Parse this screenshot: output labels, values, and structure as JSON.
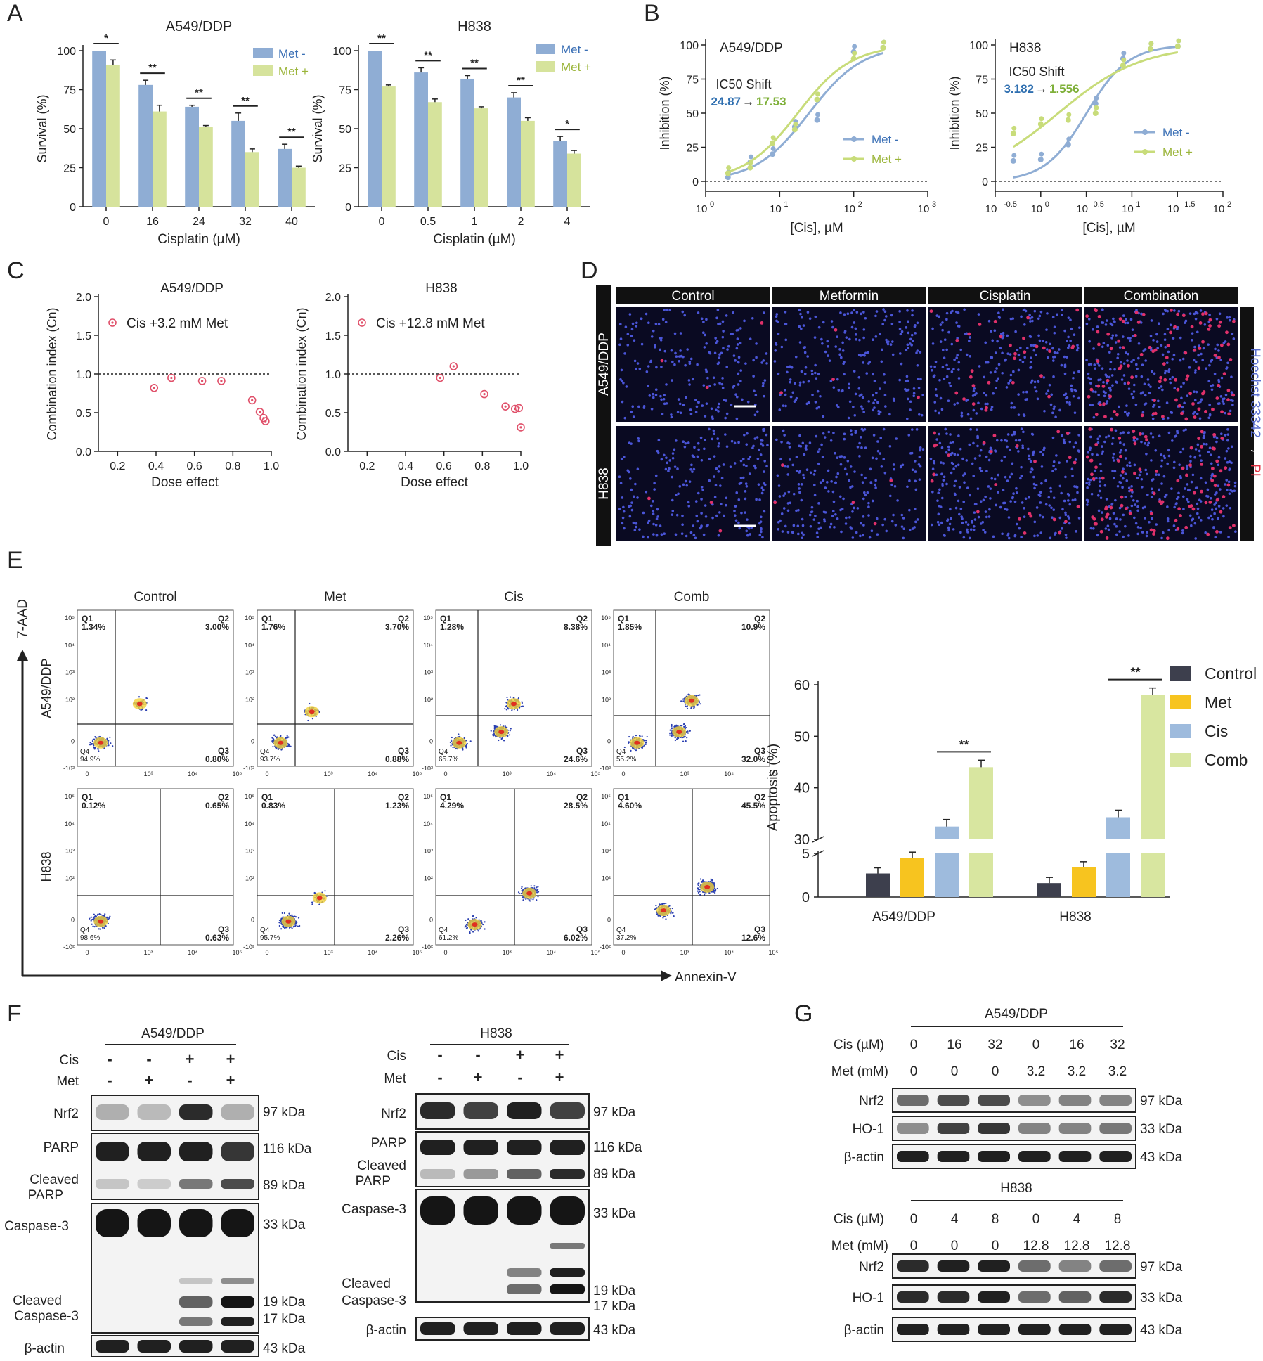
{
  "panels": {
    "A": "A",
    "B": "B",
    "C": "C",
    "D": "D",
    "E": "E",
    "F": "F",
    "G": "G"
  },
  "common": {
    "survival_ylabel": "Survival (%)",
    "cisplatin_xlabel": "Cisplatin (µM)",
    "inhibition_ylabel": "Inhibition (%)",
    "cis_xlabel": "[Cis], µM",
    "ci_ylabel": "Combination index (Cn)",
    "dose_effect_xlabel": "Dose effect",
    "met_minus": "Met -",
    "met_plus": "Met +",
    "ic50_shift": "IC50 Shift",
    "arrow": "→",
    "star2": "**",
    "star1": "*",
    "x_axis_flow": "Annexin-V",
    "y_axis_flow": "7-AAD",
    "apoptosis_ylabel": "Apoptosis (%)"
  },
  "colors": {
    "met_minus": "#8fadd4",
    "met_plus": "#d6e39c",
    "control": "#3d3f4d",
    "met": "#f7c41f",
    "cis": "#9ebbdd",
    "comb": "#d8e6a0",
    "ic50_blue": "#2f6fb0",
    "ic50_green": "#7fb03a",
    "ci_red": "#e0506a"
  },
  "chart_data": [
    {
      "id": "A1",
      "type": "bar",
      "title": "A549/DDP",
      "xlabel": "Cisplatin (µM)",
      "ylabel": "Survival (%)",
      "ylim": [
        0,
        100
      ],
      "categories": [
        "0",
        "16",
        "24",
        "32",
        "40"
      ],
      "series": [
        {
          "name": "Met -",
          "values": [
            100,
            78,
            64,
            55,
            37
          ],
          "err": [
            0,
            3,
            1,
            5,
            3
          ]
        },
        {
          "name": "Met +",
          "values": [
            91,
            61,
            51,
            35,
            25
          ],
          "err": [
            3,
            4,
            1,
            2,
            1
          ]
        }
      ],
      "signif": [
        "*",
        "**",
        "**",
        "**",
        "**"
      ]
    },
    {
      "id": "A2",
      "type": "bar",
      "title": "H838",
      "xlabel": "Cisplatin (µM)",
      "ylabel": "Survival (%)",
      "ylim": [
        0,
        100
      ],
      "categories": [
        "0",
        "0.5",
        "1",
        "2",
        "4"
      ],
      "series": [
        {
          "name": "Met -",
          "values": [
            100,
            86,
            82,
            70,
            42
          ],
          "err": [
            0,
            3,
            2,
            3,
            3
          ]
        },
        {
          "name": "Met +",
          "values": [
            77,
            67,
            63,
            55,
            34
          ],
          "err": [
            1,
            2,
            1,
            2,
            2
          ]
        }
      ],
      "signif": [
        "**",
        "**",
        "**",
        "**",
        "*"
      ]
    },
    {
      "id": "B1",
      "type": "line",
      "title": "A549/DDP",
      "xlabel": "[Cis], µM",
      "ylabel": "Inhibition (%)",
      "xscale": "log",
      "xlim": [
        1,
        1000
      ],
      "ylim": [
        0,
        100
      ],
      "ic50_from": "24.87",
      "ic50_to": "17.53",
      "series": [
        {
          "name": "Met -",
          "x": [
            2,
            4,
            8,
            16,
            32,
            100,
            250
          ],
          "y": [
            3,
            14,
            20,
            40,
            45,
            95,
            98
          ]
        },
        {
          "name": "Met +",
          "x": [
            2,
            4,
            8,
            16,
            32,
            100,
            250
          ],
          "y": [
            6,
            10,
            28,
            38,
            60,
            90,
            98
          ]
        }
      ]
    },
    {
      "id": "B2",
      "type": "line",
      "title": "H838",
      "xlabel": "[Cis], µM",
      "ylabel": "Inhibition (%)",
      "xscale": "log",
      "xlim": [
        0.316,
        100
      ],
      "ylim": [
        0,
        100
      ],
      "ic50_from": "3.182",
      "ic50_to": "1.556",
      "series": [
        {
          "name": "Met -",
          "x": [
            0.5,
            1,
            2,
            4,
            8,
            16,
            32
          ],
          "y": [
            15,
            16,
            27,
            57,
            90,
            97,
            99
          ]
        },
        {
          "name": "Met +",
          "x": [
            0.5,
            1,
            2,
            4,
            8,
            16,
            32
          ],
          "y": [
            35,
            42,
            45,
            50,
            85,
            97,
            99
          ]
        }
      ]
    },
    {
      "id": "C1",
      "type": "scatter",
      "title": "A549/DDP",
      "xlabel": "Dose effect",
      "ylabel": "Combination index (Cn)",
      "xlim": [
        0.1,
        1.0
      ],
      "ylim": [
        0,
        2.0
      ],
      "legend": "Cis +3.2 mM Met",
      "x": [
        0.39,
        0.48,
        0.64,
        0.74,
        0.9,
        0.94,
        0.96,
        0.97
      ],
      "y": [
        0.82,
        0.95,
        0.91,
        0.91,
        0.66,
        0.51,
        0.43,
        0.39
      ]
    },
    {
      "id": "C2",
      "type": "scatter",
      "title": "H838",
      "xlabel": "Dose effect",
      "ylabel": "Combination index (Cn)",
      "xlim": [
        0.1,
        1.0
      ],
      "ylim": [
        0,
        2.0
      ],
      "legend": "Cis +12.8 mM Met",
      "x": [
        0.58,
        0.65,
        0.81,
        0.92,
        0.97,
        0.99,
        1.0
      ],
      "y": [
        0.95,
        1.1,
        0.74,
        0.58,
        0.55,
        0.56,
        0.31
      ]
    },
    {
      "id": "E_bar",
      "type": "bar",
      "xlabel": "",
      "ylabel": "Apoptosis (%)",
      "ylim": [
        0,
        60
      ],
      "axis_break": [
        5,
        30
      ],
      "categories": [
        "A549/DDP",
        "H838"
      ],
      "series": [
        {
          "name": "Control",
          "values": [
            2.7,
            1.6
          ]
        },
        {
          "name": "Met",
          "values": [
            4.5,
            3.4
          ]
        },
        {
          "name": "Cis",
          "values": [
            32.5,
            34.3
          ]
        },
        {
          "name": "Comb",
          "values": [
            44,
            58
          ]
        }
      ],
      "signif": [
        "**",
        "**"
      ]
    }
  ],
  "B_ticks": {
    "b1_x": [
      {
        "base": "10",
        "exp": "0"
      },
      {
        "base": "10",
        "exp": "1"
      },
      {
        "base": "10",
        "exp": "2"
      },
      {
        "base": "10",
        "exp": "3"
      }
    ],
    "b2_x": [
      {
        "base": "10",
        "exp": "-0.5"
      },
      {
        "base": "10",
        "exp": "0"
      },
      {
        "base": "10",
        "exp": "0.5"
      },
      {
        "base": "10",
        "exp": "1"
      },
      {
        "base": "10",
        "exp": "1.5"
      },
      {
        "base": "10",
        "exp": "2"
      }
    ],
    "y": [
      "0",
      "25",
      "50",
      "75",
      "100"
    ]
  },
  "D": {
    "cols": [
      "Control",
      "Metformin",
      "Cisplatin",
      "Combination"
    ],
    "rows": [
      "A549/DDP",
      "H838"
    ],
    "side_label_1": "Hoechst 33342",
    "side_label_sep": " / ",
    "side_label_2": "PI"
  },
  "E_flow": {
    "cols": [
      "Control",
      "Met",
      "Cis",
      "Comb"
    ],
    "rows": [
      "A549/DDP",
      "H838"
    ],
    "quads": [
      [
        {
          "q1": "1.34%",
          "q2": "3.00%",
          "q3": "0.80%",
          "q4": "94.9%"
        },
        {
          "q1": "1.76%",
          "q2": "3.70%",
          "q3": "0.88%",
          "q4": "93.7%"
        },
        {
          "q1": "1.28%",
          "q2": "8.38%",
          "q3": "24.6%",
          "q4": "65.7%"
        },
        {
          "q1": "1.85%",
          "q2": "10.9%",
          "q3": "32.0%",
          "q4": "55.2%"
        }
      ],
      [
        {
          "q1": "0.12%",
          "q2": "0.65%",
          "q3": "0.63%",
          "q4": "98.6%"
        },
        {
          "q1": "0.83%",
          "q2": "1.23%",
          "q3": "2.26%",
          "q4": "95.7%"
        },
        {
          "q1": "4.29%",
          "q2": "28.5%",
          "q3": "6.02%",
          "q4": "61.2%"
        },
        {
          "q1": "4.60%",
          "q2": "45.5%",
          "q3": "12.6%",
          "q4": "37.2%"
        }
      ]
    ],
    "qlabels": [
      "Q1",
      "Q2",
      "Q3",
      "Q4"
    ],
    "yticks": [
      "10⁵",
      "10⁴",
      "10³",
      "10²",
      "0",
      "-10²"
    ],
    "xticks": [
      "0",
      "10³",
      "10⁴",
      "10⁵"
    ]
  },
  "F": {
    "title_a": "A549/DDP",
    "title_h": "H838",
    "cis_label": "Cis",
    "met_label": "Met",
    "cis_signs": [
      "-",
      "-",
      "+",
      "+"
    ],
    "met_signs": [
      "-",
      "+",
      "-",
      "+"
    ],
    "left_labels": [
      "Nrf2",
      "PARP",
      "Cleaved PARP",
      "Caspase-3",
      "Cleaved Caspase-3",
      "β-actin"
    ],
    "kda": [
      "97 kDa",
      "116 kDa",
      "89 kDa",
      "33 kDa",
      "19 kDa",
      "17 kDa",
      "43 kDa"
    ]
  },
  "G": {
    "title_a": "A549/DDP",
    "title_h": "H838",
    "cis_label": "Cis (µM)",
    "met_label": "Met (mM)",
    "a_cis": [
      "0",
      "16",
      "32",
      "0",
      "16",
      "32"
    ],
    "a_met": [
      "0",
      "0",
      "0",
      "3.2",
      "3.2",
      "3.2"
    ],
    "h_cis": [
      "0",
      "4",
      "8",
      "0",
      "4",
      "8"
    ],
    "h_met": [
      "0",
      "0",
      "0",
      "12.8",
      "12.8",
      "12.8"
    ],
    "rows": [
      "Nrf2",
      "HO-1",
      "β-actin"
    ],
    "kda": [
      "97 kDa",
      "33 kDa",
      "43 kDa"
    ]
  }
}
